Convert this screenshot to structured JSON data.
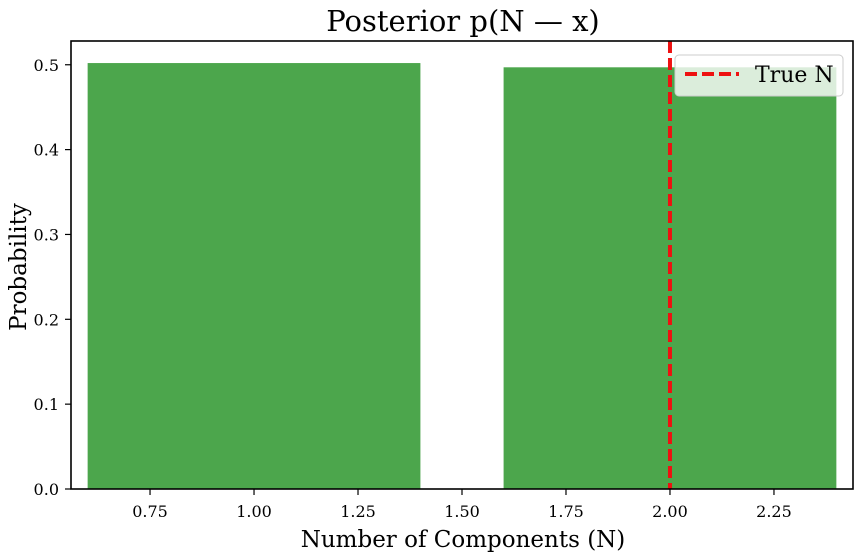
{
  "chart_data": {
    "type": "bar",
    "title": "Posterior p(N — x)",
    "xlabel": "Number of Components (N)",
    "ylabel": "Probability",
    "x": [
      1,
      2
    ],
    "values": [
      0.502,
      0.497
    ],
    "bar_width": 0.8,
    "xlim": [
      0.56,
      2.44
    ],
    "ylim": [
      0,
      0.528
    ],
    "xticks": [
      0.75,
      1.0,
      1.25,
      1.5,
      1.75,
      2.0,
      2.25
    ],
    "xtick_labels": [
      "0.75",
      "1.00",
      "1.25",
      "1.50",
      "1.75",
      "2.00",
      "2.25"
    ],
    "yticks": [
      0.0,
      0.1,
      0.2,
      0.3,
      0.4,
      0.5
    ],
    "ytick_labels": [
      "0.0",
      "0.1",
      "0.2",
      "0.3",
      "0.4",
      "0.5"
    ],
    "bar_color": "#4ca64c",
    "reference_line": {
      "x": 2,
      "label": "True N",
      "color": "#ee1111",
      "style": "dashed"
    },
    "legend": {
      "position": "top-right",
      "entries": [
        "True N"
      ]
    },
    "grid": false
  }
}
